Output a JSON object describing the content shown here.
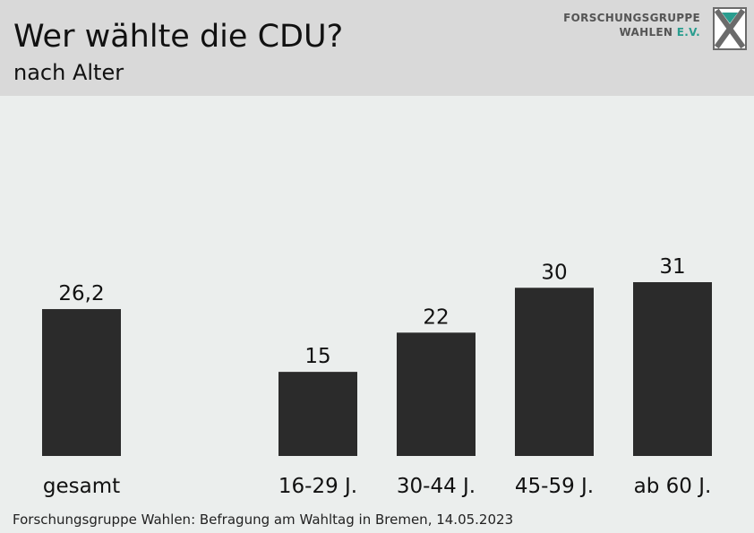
{
  "header": {
    "title": "Wer wählte die CDU?",
    "subtitle": "nach Alter"
  },
  "logo": {
    "line1": "FORSCHUNGSGRUPPE",
    "line2_main": "WAHLEN",
    "line2_accent": "E.V.",
    "accent_color": "#2a9d8f"
  },
  "footer": {
    "source": "Forschungsgruppe Wahlen: Befragung am Wahltag in Bremen, 14.05.2023"
  },
  "chart_data": {
    "type": "bar",
    "title": "Wer wählte die CDU?",
    "subtitle": "nach Alter",
    "categories": [
      "gesamt",
      "16-29 J.",
      "30-44 J.",
      "45-59 J.",
      "ab 60 J."
    ],
    "values": [
      26.2,
      15,
      22,
      30,
      31
    ],
    "value_labels": [
      "26,2",
      "15",
      "22",
      "30",
      "31"
    ],
    "bar_color": "#2b2b2b",
    "ylim": [
      0,
      31
    ],
    "grid": false,
    "legend": "none"
  }
}
